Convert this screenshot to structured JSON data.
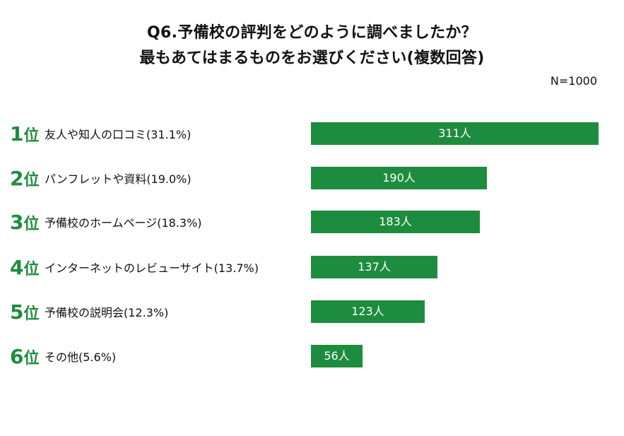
{
  "chart_data": {
    "type": "bar",
    "orientation": "horizontal",
    "title": "Q6.予備校の評判をどのように調べましたか？",
    "subtitle": "最もあてはまるものをお選びください(複数回答)",
    "sample_label": "N=1000",
    "rank_suffix": "位",
    "unit": "人",
    "xlim": [
      0,
      311
    ],
    "categories": [
      {
        "rank": "1",
        "label": "友人や知人の口コミ(31.1%)",
        "value": 311,
        "value_label": "311人"
      },
      {
        "rank": "2",
        "label": "パンフレットや資料(19.0%)",
        "value": 190,
        "value_label": "190人"
      },
      {
        "rank": "3",
        "label": "予備校のホームページ(18.3%)",
        "value": 183,
        "value_label": "183人"
      },
      {
        "rank": "4",
        "label": "インターネットのレビューサイト(13.7%)",
        "value": 137,
        "value_label": "137人"
      },
      {
        "rank": "5",
        "label": "予備校の説明会(12.3%)",
        "value": 123,
        "value_label": "123人"
      },
      {
        "rank": "6",
        "label": "その他(5.6%)",
        "value": 56,
        "value_label": "56人"
      }
    ],
    "colors": {
      "bar": "#1e8c3e",
      "rank": "#1e8c3e",
      "bar_text": "#ffffff"
    }
  }
}
